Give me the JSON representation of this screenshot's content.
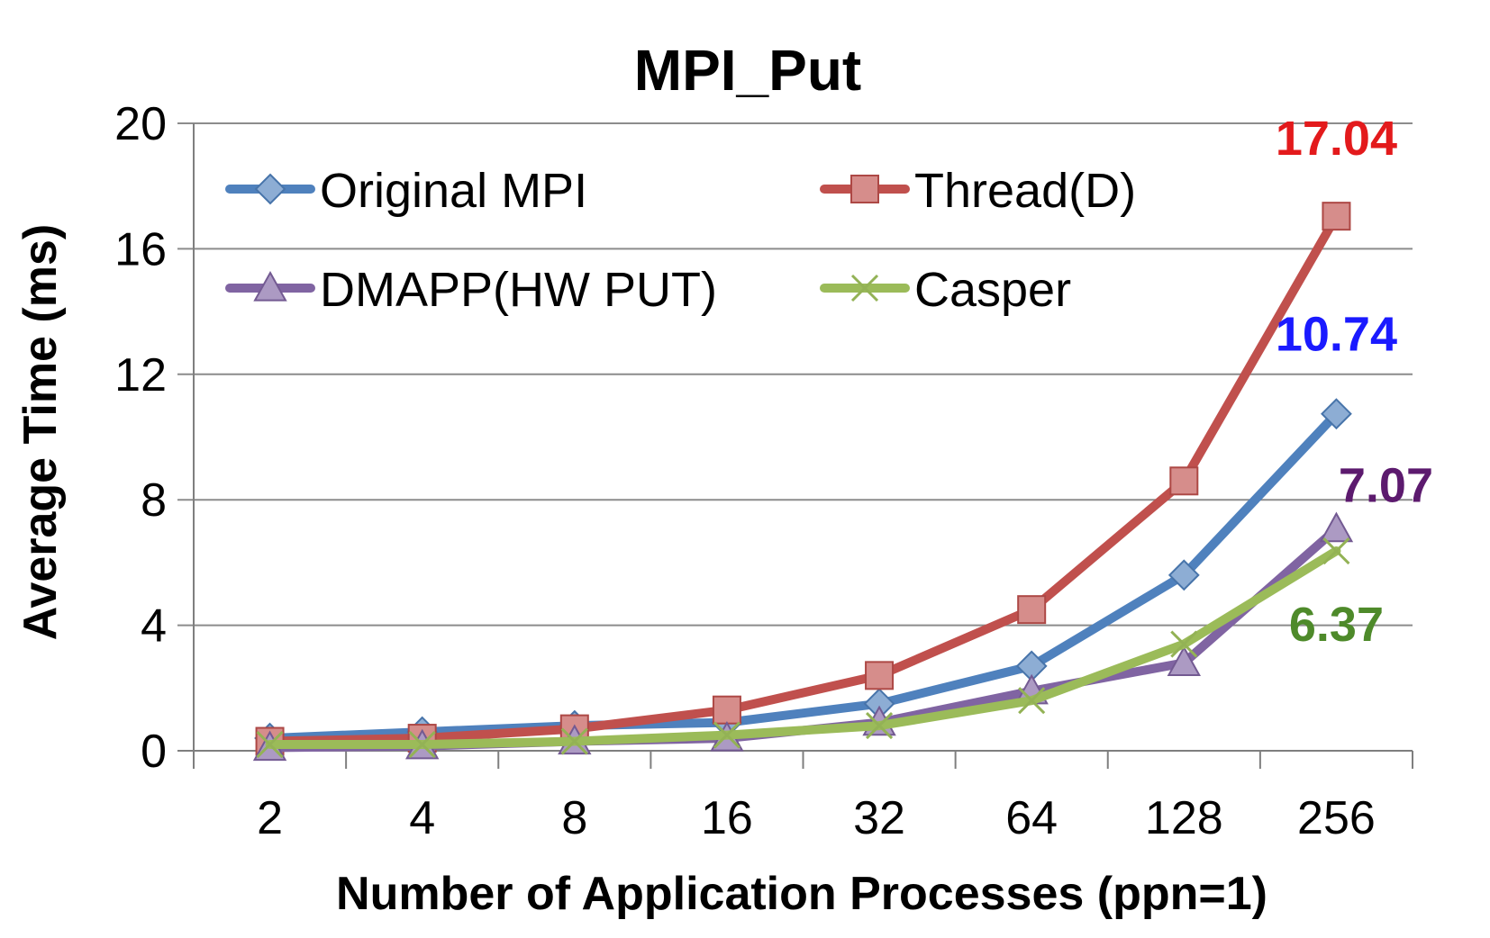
{
  "chart_data": {
    "type": "line",
    "title": "MPI_Put",
    "xlabel": "Number of Application Processes (ppn=1)",
    "ylabel": "Average Time (ms)",
    "categories": [
      "2",
      "4",
      "8",
      "16",
      "32",
      "64",
      "128",
      "256"
    ],
    "ylim": [
      0,
      20
    ],
    "yticks": [
      0,
      4,
      8,
      12,
      16,
      20
    ],
    "grid": true,
    "legend_position": "top-left",
    "series": [
      {
        "name": "Original MPI",
        "color": "#4f81bd",
        "marker": "diamond",
        "values": [
          0.4,
          0.6,
          0.8,
          0.9,
          1.5,
          2.7,
          5.6,
          10.74
        ]
      },
      {
        "name": "Thread(D)",
        "color": "#c0504d",
        "marker": "square",
        "values": [
          0.3,
          0.4,
          0.7,
          1.3,
          2.4,
          4.5,
          8.6,
          17.04
        ]
      },
      {
        "name": "DMAPP(HW PUT)",
        "color": "#8064a2",
        "marker": "triangle",
        "values": [
          0.1,
          0.15,
          0.3,
          0.4,
          0.9,
          1.9,
          2.8,
          7.07
        ]
      },
      {
        "name": "Casper",
        "color": "#9bbb59",
        "marker": "x",
        "values": [
          0.2,
          0.2,
          0.3,
          0.5,
          0.8,
          1.6,
          3.4,
          6.37
        ]
      }
    ],
    "data_labels": [
      {
        "text": "17.04",
        "color": "#e31a1c",
        "series": 1,
        "index": 7
      },
      {
        "text": "10.74",
        "color": "#1a1aff",
        "series": 0,
        "index": 7
      },
      {
        "text": "7.07",
        "color": "#5c1a6e",
        "series": 2,
        "index": 7
      },
      {
        "text": "6.37",
        "color": "#4e8a2a",
        "series": 3,
        "index": 7
      }
    ]
  }
}
